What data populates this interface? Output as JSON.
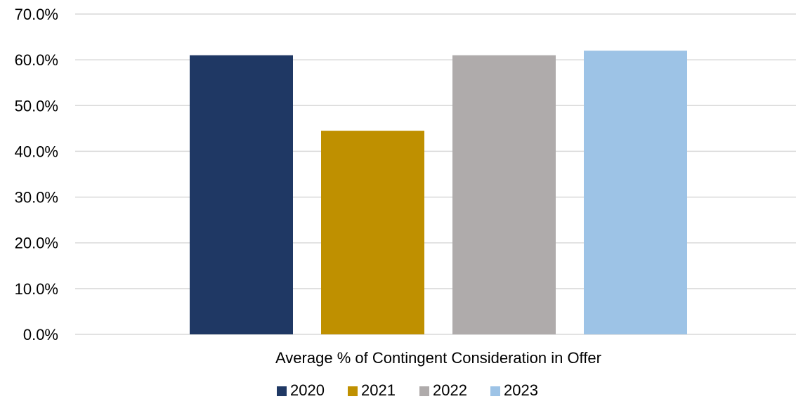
{
  "chart_data": {
    "type": "bar",
    "categories": [
      "Average % of Contingent Consideration in Offer"
    ],
    "series": [
      {
        "name": "2020",
        "values": [
          61.0
        ],
        "color": "#1f3864"
      },
      {
        "name": "2021",
        "values": [
          44.5
        ],
        "color": "#bf9000"
      },
      {
        "name": "2022",
        "values": [
          61.0
        ],
        "color": "#afabab"
      },
      {
        "name": "2023",
        "values": [
          62.0
        ],
        "color": "#9dc3e6"
      }
    ],
    "title": "",
    "xlabel": "",
    "ylabel": "",
    "ylim": [
      0,
      70
    ],
    "y_ticks": [
      "0.0%",
      "10.0%",
      "20.0%",
      "30.0%",
      "40.0%",
      "50.0%",
      "60.0%",
      "70.0%"
    ],
    "y_tick_values": [
      0,
      10,
      20,
      30,
      40,
      50,
      60,
      70
    ],
    "grid": true,
    "legend_position": "bottom-center"
  }
}
